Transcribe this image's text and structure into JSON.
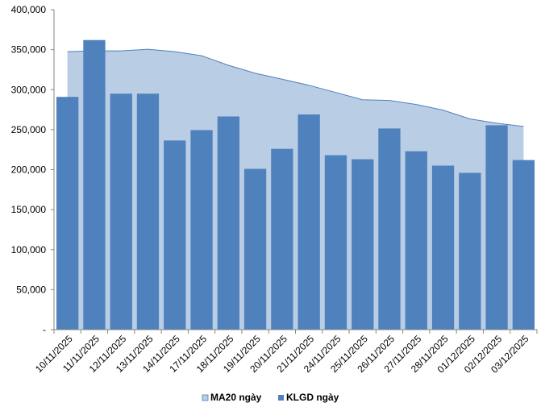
{
  "chart_data": {
    "type": "bar",
    "categories": [
      "10/11/2025",
      "11/11/2025",
      "12/11/2025",
      "13/11/2025",
      "14/11/2025",
      "17/11/2025",
      "18/11/2025",
      "19/11/2025",
      "20/11/2025",
      "21/11/2025",
      "24/11/2025",
      "25/11/2025",
      "26/11/2025",
      "27/11/2025",
      "28/11/2025",
      "01/12/2025",
      "02/12/2025",
      "03/12/2025"
    ],
    "series": [
      {
        "name": "MA20 ngày",
        "type": "area",
        "color": "#b9cde5",
        "edge_color": "#4f81bd",
        "values": [
          347500,
          348500,
          348500,
          350500,
          347500,
          342500,
          330500,
          320500,
          313000,
          305500,
          296500,
          287500,
          286500,
          281500,
          274500,
          263500,
          258000,
          254000
        ]
      },
      {
        "name": "KLGD ngày",
        "type": "bar",
        "color": "#4f81bd",
        "values": [
          291000,
          362000,
          295000,
          295000,
          236500,
          249500,
          266500,
          201000,
          226000,
          269000,
          218000,
          213000,
          251500,
          223000,
          205000,
          196000,
          255500,
          212000
        ]
      }
    ],
    "y_ticks": [
      "-",
      "50,000",
      "100,000",
      "150,000",
      "200,000",
      "250,000",
      "300,000",
      "350,000",
      "400,000"
    ],
    "ylim": [
      0,
      400000
    ],
    "grid": false,
    "legend_position": "bottom"
  }
}
